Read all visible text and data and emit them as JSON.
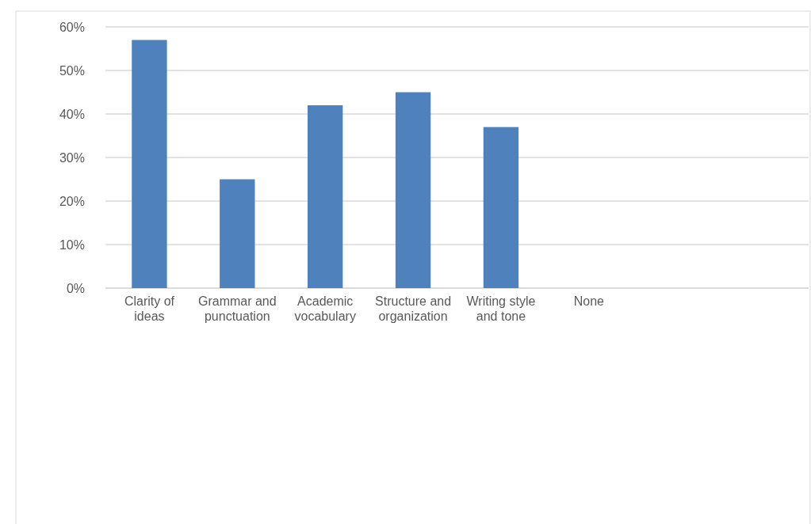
{
  "chart_data": {
    "type": "bar",
    "categories": [
      "Clarity of ideas",
      "Grammar and punctuation",
      "Academic vocabulary",
      "Structure and organization",
      "Writing style and tone",
      "None",
      null,
      null
    ],
    "values": [
      57,
      25,
      42,
      45,
      37,
      0,
      null,
      null
    ],
    "color": "#4f81bd",
    "ylim": [
      0,
      60
    ],
    "yticks": [
      {
        "value": 0,
        "label": "0%"
      },
      {
        "value": 10,
        "label": "10%"
      },
      {
        "value": 20,
        "label": "20%"
      },
      {
        "value": 30,
        "label": "30%"
      },
      {
        "value": 40,
        "label": "40%"
      },
      {
        "value": 50,
        "label": "50%"
      },
      {
        "value": 60,
        "label": "60%"
      }
    ],
    "grid": true
  }
}
